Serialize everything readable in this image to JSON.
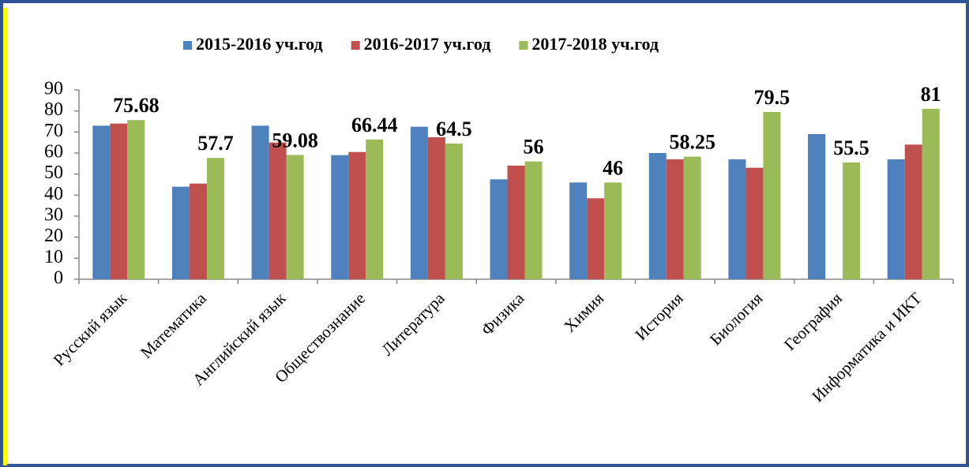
{
  "chart_data": {
    "type": "bar",
    "categories": [
      "Русский язык",
      "Математика",
      "Английский язык",
      "Обществознание",
      "Литература",
      "Физика",
      "Химия",
      "История",
      "Биология",
      "География",
      "Информатика и ИКТ"
    ],
    "series": [
      {
        "name": "2015-2016 уч.год",
        "color": "#4f81bd",
        "values": [
          73,
          44,
          73,
          59,
          72.5,
          47.5,
          46,
          60,
          57,
          69,
          57
        ]
      },
      {
        "name": "2016-2017 уч.год",
        "color": "#c0504d",
        "values": [
          74,
          45.5,
          65,
          60.5,
          67.5,
          54,
          38.5,
          57,
          53,
          null,
          64
        ]
      },
      {
        "name": "2017-2018 уч.год",
        "color": "#9bbb59",
        "values": [
          75.68,
          57.7,
          59.08,
          66.44,
          64.5,
          56,
          46,
          58.25,
          79.5,
          55.5,
          81
        ],
        "show_value_labels": true
      }
    ],
    "ylim": [
      0,
      90
    ],
    "yticks": [
      0,
      10,
      20,
      30,
      40,
      50,
      60,
      70,
      80,
      90
    ],
    "legend": "top",
    "grid": false
  }
}
